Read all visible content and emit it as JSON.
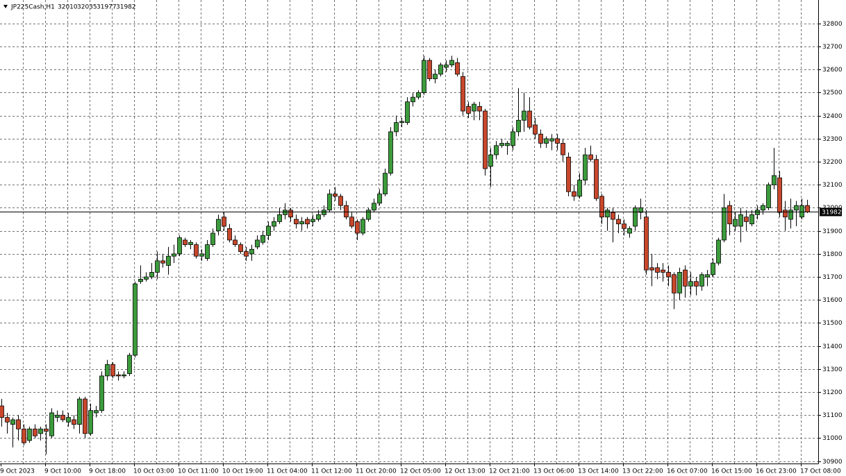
{
  "chart_data": {
    "type": "candlestick",
    "title": "JP225Cash,H1",
    "categories": [
      "9 Oct 2023",
      null,
      null,
      null,
      null,
      null,
      null,
      null,
      "9 Oct 10:00",
      null,
      null,
      null,
      null,
      null,
      null,
      null,
      "9 Oct 18:00",
      null,
      null,
      null,
      null,
      null,
      null,
      null,
      "10 Oct 03:00",
      null,
      null,
      null,
      null,
      null,
      null,
      null,
      "10 Oct 11:00",
      null,
      null,
      null,
      null,
      null,
      null,
      null,
      "10 Oct 19:00",
      null,
      null,
      null,
      null,
      null,
      null,
      null,
      "11 Oct 04:00",
      null,
      null,
      null,
      null,
      null,
      null,
      null,
      "11 Oct 12:00",
      null,
      null,
      null,
      null,
      null,
      null,
      null,
      "11 Oct 20:00",
      null,
      null,
      null,
      null,
      null,
      null,
      null,
      "12 Oct 05:00",
      null,
      null,
      null,
      null,
      null,
      null,
      null,
      "12 Oct 13:00",
      null,
      null,
      null,
      null,
      null,
      null,
      null,
      "12 Oct 21:00",
      null,
      null,
      null,
      null,
      null,
      null,
      null,
      "13 Oct 06:00",
      null,
      null,
      null,
      null,
      null,
      null,
      null,
      "13 Oct 14:00",
      null,
      null,
      null,
      null,
      null,
      null,
      null,
      "13 Oct 22:00",
      null,
      null,
      null,
      null,
      null,
      null,
      null,
      "16 Oct 07:00",
      null,
      null,
      null,
      null,
      null,
      null,
      null,
      "16 Oct 15:00",
      null,
      null,
      null,
      null,
      null,
      null,
      null,
      "16 Oct 23:00",
      null,
      null,
      null,
      null,
      null,
      null,
      null,
      "17 Oct 08:00",
      null
    ],
    "open": [
      31140,
      31090,
      31060,
      31080,
      31040,
      30990,
      31040,
      31020,
      31040,
      31010,
      31090,
      31100,
      31070,
      31080,
      31060,
      31170,
      31020,
      31110,
      31120,
      31270,
      31320,
      31275,
      31270,
      31280,
      31360,
      31680,
      31690,
      31700,
      31720,
      31770,
      31750,
      31790,
      31800,
      31860,
      31840,
      31840,
      31790,
      31780,
      31840,
      31900,
      31960,
      31910,
      31860,
      31840,
      31810,
      31800,
      31830,
      31850,
      31880,
      31920,
      31940,
      31970,
      31990,
      31950,
      31930,
      31950,
      31940,
      31950,
      31970,
      31990,
      32060,
      32050,
      32010,
      31960,
      31940,
      31890,
      31950,
      31990,
      32020,
      32060,
      32150,
      32330,
      32370,
      32370,
      32460,
      32480,
      32500,
      32640,
      32560,
      32580,
      32610,
      32620,
      32630,
      32570,
      32440,
      32420,
      32440,
      32420,
      32180,
      32230,
      32270,
      32270,
      32270,
      32330,
      32380,
      32420,
      32360,
      32320,
      32280,
      32290,
      32300,
      32280,
      32220,
      32070,
      32050,
      32120,
      32230,
      32210,
      32050,
      31960,
      31980,
      31950,
      31930,
      31890,
      31920,
      31980,
      31960,
      31740,
      31740,
      31730,
      31720,
      31710,
      31630,
      31730,
      31660,
      31680,
      31660,
      31700,
      31710,
      31760,
      31860,
      32010,
      31920,
      31920,
      31960,
      31930,
      31970,
      31990,
      32000,
      32100,
      32130,
      31990,
      31950,
      31990,
      31960,
      32010
    ],
    "high": [
      31170,
      31110,
      31090,
      31100,
      31060,
      31050,
      31060,
      31050,
      31060,
      31130,
      31120,
      31120,
      31110,
      31100,
      31180,
      31180,
      31150,
      31140,
      31290,
      31340,
      31330,
      31290,
      31290,
      31370,
      31680,
      31750,
      31720,
      31760,
      31810,
      31800,
      31830,
      31840,
      31880,
      31870,
      31860,
      31850,
      31820,
      31860,
      31910,
      31970,
      31980,
      31930,
      31880,
      31850,
      31830,
      31840,
      31880,
      31900,
      31940,
      31960,
      32000,
      32020,
      32000,
      31970,
      31960,
      31960,
      31970,
      31990,
      32010,
      32080,
      32090,
      32060,
      32030,
      31980,
      31950,
      31960,
      32000,
      32040,
      32080,
      32170,
      32350,
      32400,
      32390,
      32480,
      32500,
      32510,
      32660,
      32650,
      32600,
      32630,
      32640,
      32660,
      32650,
      32590,
      32460,
      32460,
      32460,
      32430,
      32260,
      32290,
      32300,
      32290,
      32350,
      32520,
      32500,
      32480,
      32390,
      32340,
      32310,
      32320,
      32320,
      32300,
      32240,
      32100,
      32150,
      32260,
      32270,
      32230,
      32060,
      32000,
      32000,
      31970,
      31950,
      31920,
      32010,
      32040,
      31990,
      31800,
      31760,
      31760,
      31750,
      31720,
      31740,
      31750,
      31720,
      31700,
      31720,
      31730,
      31780,
      31870,
      32060,
      32030,
      31980,
      32000,
      31990,
      31990,
      32010,
      32020,
      32110,
      32260,
      32160,
      32030,
      32040,
      32030,
      32040,
      32035
    ],
    "low": [
      31050,
      31020,
      30960,
      30990,
      30970,
      30980,
      31000,
      30990,
      30930,
      31000,
      31070,
      31070,
      31050,
      31040,
      31020,
      31000,
      31010,
      31090,
      31110,
      31250,
      31260,
      31250,
      31260,
      31270,
      31350,
      31670,
      31680,
      31690,
      31690,
      31740,
      31710,
      31760,
      31790,
      31830,
      31820,
      31780,
      31770,
      31770,
      31830,
      31880,
      31900,
      31850,
      31830,
      31800,
      31770,
      31770,
      31820,
      31840,
      31860,
      31900,
      31930,
      31950,
      31940,
      31910,
      31900,
      31910,
      31920,
      31940,
      31960,
      31980,
      32030,
      31990,
      31950,
      31910,
      31860,
      31880,
      31940,
      31980,
      32010,
      32050,
      32140,
      32310,
      32350,
      32360,
      32440,
      32470,
      32490,
      32550,
      32540,
      32570,
      32590,
      32610,
      32570,
      32400,
      32390,
      32380,
      32380,
      32140,
      32090,
      32210,
      32260,
      32230,
      32250,
      32310,
      32330,
      32340,
      32300,
      32260,
      32260,
      32250,
      32250,
      32200,
      32050,
      32030,
      32040,
      32100,
      32200,
      32030,
      31930,
      31900,
      31850,
      31890,
      31880,
      31870,
      31900,
      31950,
      31710,
      31660,
      31690,
      31680,
      31660,
      31560,
      31600,
      31610,
      31620,
      31620,
      31640,
      31660,
      31700,
      31750,
      31850,
      31880,
      31900,
      31850,
      31900,
      31920,
      31950,
      31970,
      31990,
      32080,
      31960,
      31900,
      31910,
      31920,
      31950,
      31977
    ],
    "close": [
      31090,
      31070,
      31080,
      31040,
      30980,
      31040,
      31010,
      31040,
      31030,
      31110,
      31100,
      31080,
      31090,
      31060,
      31170,
      31020,
      31120,
      31120,
      31270,
      31320,
      31270,
      31270,
      31275,
      31360,
      31670,
      31690,
      31700,
      31720,
      31770,
      31760,
      31790,
      31800,
      31870,
      31840,
      31850,
      31790,
      31800,
      31840,
      31890,
      31950,
      31920,
      31860,
      31840,
      31810,
      31790,
      31820,
      31860,
      31880,
      31920,
      31940,
      31970,
      31990,
      31960,
      31930,
      31940,
      31930,
      31950,
      31970,
      31990,
      32060,
      32050,
      32010,
      31960,
      31920,
      31890,
      31950,
      31990,
      32020,
      32060,
      32150,
      32330,
      32370,
      32375,
      32460,
      32480,
      32500,
      32640,
      32560,
      32580,
      32620,
      32620,
      32640,
      32580,
      32420,
      32410,
      32450,
      32420,
      32170,
      32230,
      32270,
      32280,
      32280,
      32330,
      32380,
      32420,
      32350,
      32320,
      32280,
      32300,
      32300,
      32280,
      32230,
      32070,
      32050,
      32120,
      32230,
      32210,
      32040,
      31960,
      31990,
      31950,
      31930,
      31910,
      31910,
      32000,
      32000,
      31730,
      31730,
      31720,
      31720,
      31700,
      31630,
      31720,
      31660,
      31680,
      31660,
      31710,
      31710,
      31760,
      31860,
      32000,
      31930,
      31950,
      31970,
      31940,
      31970,
      31990,
      32010,
      32100,
      32140,
      31980,
      31960,
      31990,
      32010,
      32010,
      31982
    ],
    "up_color": "#3c9b3c",
    "down_color": "#c8472c",
    "ylim": [
      30890,
      32902
    ],
    "yticks": [
      30900,
      31000,
      31100,
      31200,
      31300,
      31400,
      31500,
      31600,
      31700,
      31800,
      31900,
      32000,
      32100,
      32200,
      32300,
      32400,
      32500,
      32600,
      32700,
      32800
    ],
    "grid": true
  }
}
